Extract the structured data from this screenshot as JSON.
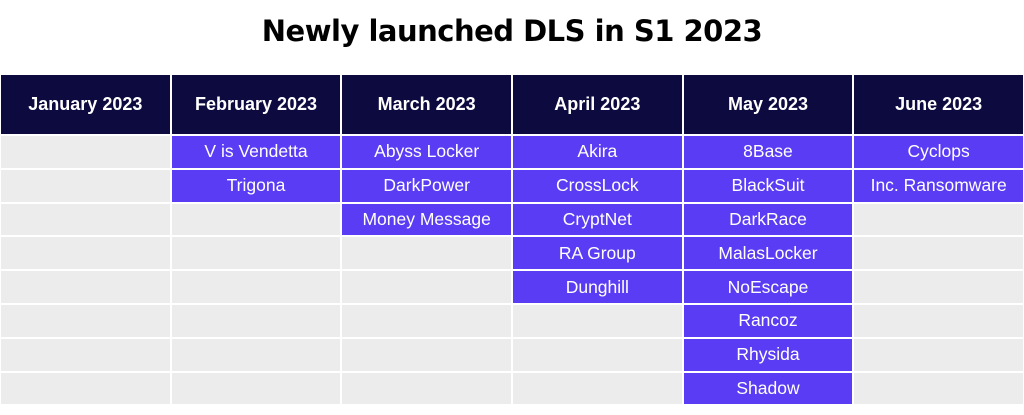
{
  "title": "Newly launched DLS in S1 2023",
  "colors": {
    "header_bg": "#0c0a3e",
    "filled_bg": "#5b3cf5",
    "empty_bg": "#ececec"
  },
  "chart_data": {
    "type": "table",
    "title": "Newly launched DLS in S1 2023",
    "columns": [
      {
        "month": "January 2023",
        "groups": []
      },
      {
        "month": "February 2023",
        "groups": [
          "V is Vendetta",
          "Trigona"
        ]
      },
      {
        "month": "March 2023",
        "groups": [
          "Abyss Locker",
          "DarkPower",
          "Money Message"
        ]
      },
      {
        "month": "April 2023",
        "groups": [
          "Akira",
          "CrossLock",
          "CryptNet",
          "RA Group",
          "Dunghill"
        ]
      },
      {
        "month": "May 2023",
        "groups": [
          "8Base",
          "BlackSuit",
          "DarkRace",
          "MalasLocker",
          "NoEscape",
          "Rancoz",
          "Rhysida",
          "Shadow"
        ]
      },
      {
        "month": "June 2023",
        "groups": [
          "Cyclops",
          "Inc. Ransomware"
        ]
      }
    ]
  }
}
